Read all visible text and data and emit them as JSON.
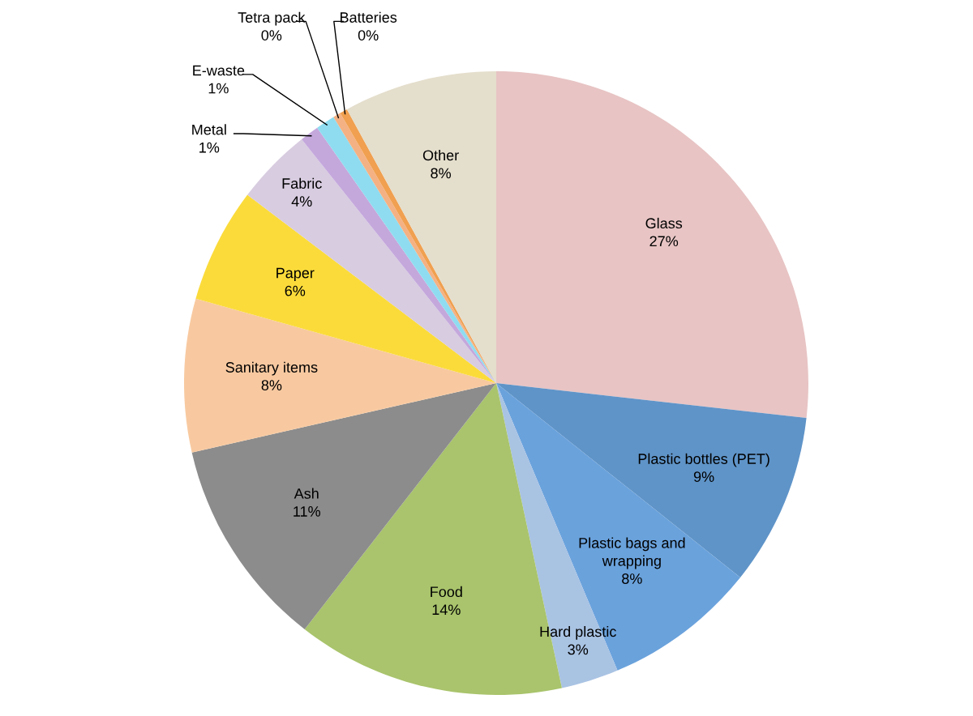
{
  "chart_data": {
    "type": "pie",
    "categories": [
      "Glass",
      "Plastic bottles (PET)",
      "Plastic bags and\nwrapping",
      "Hard plastic",
      "Food",
      "Ash",
      "Sanitary items",
      "Paper",
      "Fabric",
      "Metal",
      "E-waste",
      "Tetra pack",
      "Batteries",
      "Other"
    ],
    "values": [
      27,
      9,
      8,
      3,
      14,
      11,
      8,
      6,
      4,
      1,
      1,
      0.4,
      0.4,
      8
    ],
    "value_labels": [
      "27%",
      "9%",
      "8%",
      "3%",
      "14%",
      "11%",
      "8%",
      "6%",
      "4%",
      "1%",
      "1%",
      "0%",
      "0%",
      "8%"
    ],
    "colors": [
      "#e8c4c4",
      "#5f94c8",
      "#6aa2dc",
      "#a9c3e3",
      "#a9c46c",
      "#8c8c8c",
      "#f8c9a0",
      "#fbdb3a",
      "#d8cce0",
      "#c4a8dc",
      "#8fdcf0",
      "#f4b183",
      "#f0a050",
      "#e4decc"
    ]
  }
}
